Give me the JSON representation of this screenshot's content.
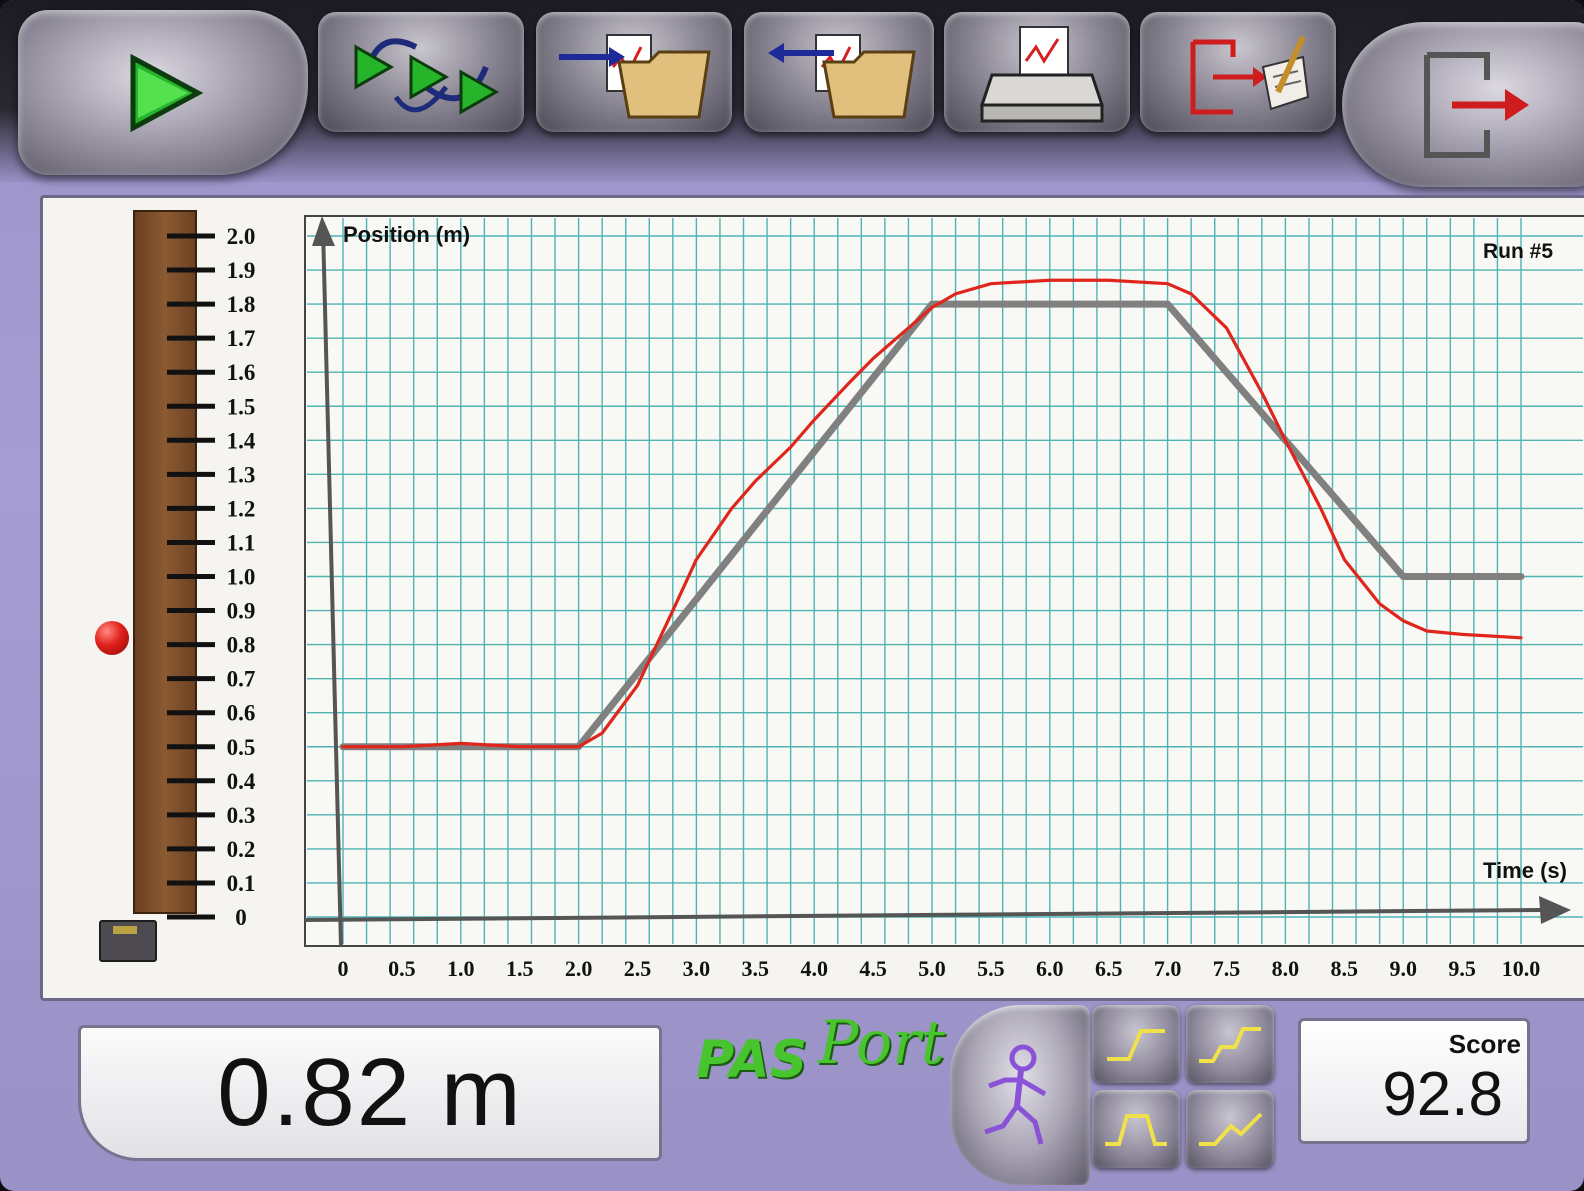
{
  "toolbar": {
    "buttons": [
      {
        "name": "start-button",
        "icon": "play-icon"
      },
      {
        "name": "repeat-button",
        "icon": "repeat-icon"
      },
      {
        "name": "import-button",
        "icon": "import-folder-icon"
      },
      {
        "name": "export-button",
        "icon": "export-folder-icon"
      },
      {
        "name": "print-button",
        "icon": "printer-icon"
      },
      {
        "name": "notes-button",
        "icon": "notes-icon"
      },
      {
        "name": "exit-button",
        "icon": "exit-icon"
      }
    ]
  },
  "ruler": {
    "labels": [
      "2.0",
      "1.9",
      "1.8",
      "1.7",
      "1.6",
      "1.5",
      "1.4",
      "1.3",
      "1.2",
      "1.1",
      "1.0",
      "0.9",
      "0.8",
      "0.7",
      "0.6",
      "0.5",
      "0.4",
      "0.3",
      "0.2",
      "0.1",
      "0"
    ],
    "ball_position_m": 0.82
  },
  "chart_data": {
    "type": "line",
    "ylabel": "Position (m)",
    "xlabel": "Time (s)",
    "run_label": "Run #5",
    "xlim": [
      0,
      10.0
    ],
    "ylim": [
      0,
      2.0
    ],
    "x_ticks": [
      "0",
      "0.5",
      "1.0",
      "1.5",
      "2.0",
      "2.5",
      "3.0",
      "3.5",
      "4.0",
      "4.5",
      "5.0",
      "5.5",
      "6.0",
      "6.5",
      "7.0",
      "7.5",
      "8.0",
      "8.5",
      "9.0",
      "9.5",
      "10.0"
    ],
    "grid": true,
    "series": [
      {
        "role": "target",
        "color": "#808080",
        "x": [
          0,
          2.0,
          5.0,
          7.0,
          9.0,
          10.0
        ],
        "y": [
          0.5,
          0.5,
          1.8,
          1.8,
          1.0,
          1.0
        ]
      },
      {
        "role": "measured",
        "color": "#e0261c",
        "x": [
          0,
          0.5,
          1.0,
          1.5,
          2.0,
          2.2,
          2.5,
          2.8,
          3.0,
          3.3,
          3.5,
          3.8,
          4.0,
          4.3,
          4.5,
          4.8,
          5.0,
          5.2,
          5.5,
          6.0,
          6.5,
          7.0,
          7.2,
          7.5,
          7.8,
          8.0,
          8.3,
          8.5,
          8.8,
          9.0,
          9.2,
          9.5,
          10.0
        ],
        "y": [
          0.5,
          0.5,
          0.51,
          0.5,
          0.5,
          0.54,
          0.68,
          0.9,
          1.05,
          1.2,
          1.28,
          1.38,
          1.46,
          1.57,
          1.64,
          1.73,
          1.79,
          1.83,
          1.86,
          1.87,
          1.87,
          1.86,
          1.83,
          1.73,
          1.54,
          1.4,
          1.2,
          1.05,
          0.92,
          0.87,
          0.84,
          0.83,
          0.82
        ]
      }
    ]
  },
  "readout": {
    "value": "0.82 m"
  },
  "logo": {
    "pas": "PAS",
    "port": "Port"
  },
  "score": {
    "label": "Score",
    "value": "92.8"
  },
  "mode_buttons": [
    {
      "name": "mode-step-up-button"
    },
    {
      "name": "mode-double-step-button"
    },
    {
      "name": "mode-plateau-button"
    },
    {
      "name": "mode-ramp-button"
    }
  ],
  "colors": {
    "accent_purple": "#a59cd3",
    "grid": "#4fb3b3",
    "ruler": "#8b5a32",
    "logo_green": "#48c52e"
  }
}
